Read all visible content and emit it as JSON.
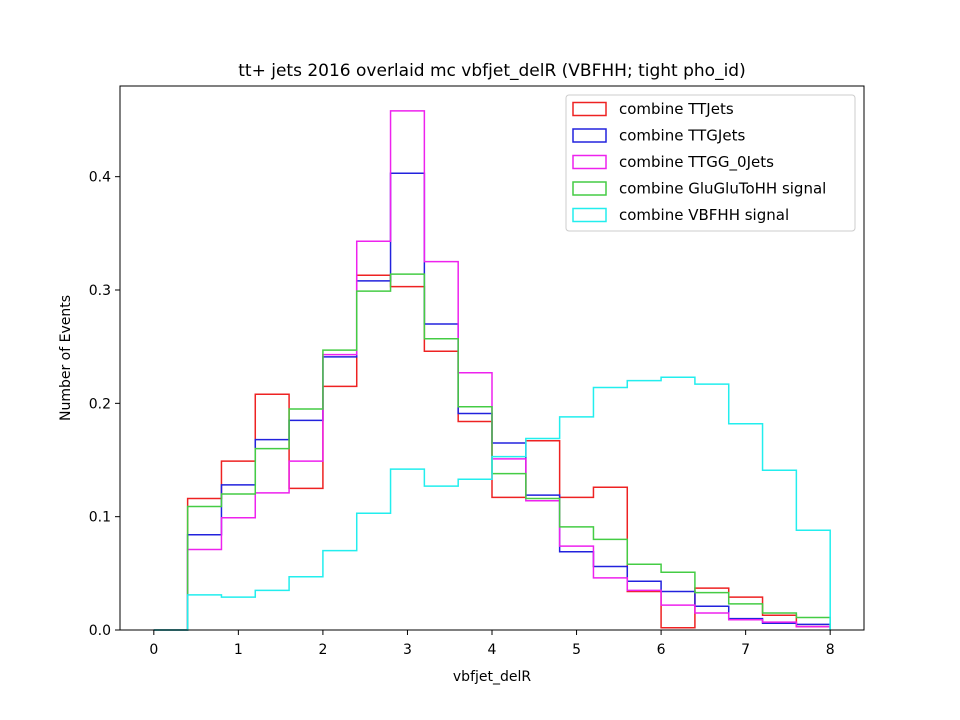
{
  "chart_data": {
    "type": "histogram-step",
    "title": "tt+ jets 2016 overlaid mc vbfjet_delR (VBFHH; tight pho_id)",
    "xlabel": "vbfjet_delR",
    "ylabel": "Number of Events",
    "xlim": [
      -0.4,
      8.4
    ],
    "ylim": [
      0.0,
      0.48
    ],
    "xticks": [
      0,
      1,
      2,
      3,
      4,
      5,
      6,
      7,
      8
    ],
    "yticks": [
      0.0,
      0.1,
      0.2,
      0.3,
      0.4
    ],
    "ytick_labels": [
      "0.0",
      "0.1",
      "0.2",
      "0.3",
      "0.4"
    ],
    "bin_edges": [
      0,
      0.4,
      0.8,
      1.2,
      1.6,
      2.0,
      2.4,
      2.8,
      3.2,
      3.6,
      4.0,
      4.4,
      4.8,
      5.2,
      5.6,
      6.0,
      6.4,
      6.8,
      7.2,
      7.6,
      8.0
    ],
    "legend_position": "upper right",
    "grid": false,
    "series": [
      {
        "name": "combine TTJets",
        "color": "#ee2222",
        "values": [
          0.0,
          0.116,
          0.149,
          0.208,
          0.125,
          0.215,
          0.313,
          0.303,
          0.246,
          0.184,
          0.117,
          0.167,
          0.117,
          0.126,
          0.034,
          0.002,
          0.037,
          0.029,
          0.013,
          0.003
        ]
      },
      {
        "name": "combine TTGJets",
        "color": "#2222dd",
        "values": [
          0.0,
          0.084,
          0.128,
          0.168,
          0.185,
          0.241,
          0.308,
          0.403,
          0.27,
          0.191,
          0.165,
          0.119,
          0.069,
          0.056,
          0.043,
          0.034,
          0.021,
          0.01,
          0.006,
          0.005
        ]
      },
      {
        "name": "combine TTGG_0Jets",
        "color": "#ee22ee",
        "values": [
          0.0,
          0.071,
          0.099,
          0.121,
          0.149,
          0.243,
          0.343,
          0.458,
          0.325,
          0.227,
          0.151,
          0.114,
          0.074,
          0.046,
          0.035,
          0.022,
          0.015,
          0.009,
          0.007,
          0.003
        ]
      },
      {
        "name": "combine GluGluToHH signal",
        "color": "#44cc44",
        "values": [
          0.0,
          0.109,
          0.12,
          0.16,
          0.195,
          0.247,
          0.299,
          0.314,
          0.257,
          0.197,
          0.138,
          0.116,
          0.091,
          0.08,
          0.058,
          0.051,
          0.033,
          0.023,
          0.015,
          0.011
        ]
      },
      {
        "name": "combine VBFHH signal",
        "color": "#22eeee",
        "values": [
          0.0,
          0.031,
          0.029,
          0.035,
          0.047,
          0.07,
          0.103,
          0.142,
          0.127,
          0.133,
          0.153,
          0.169,
          0.188,
          0.214,
          0.22,
          0.223,
          0.217,
          0.182,
          0.141,
          0.088
        ]
      }
    ]
  }
}
